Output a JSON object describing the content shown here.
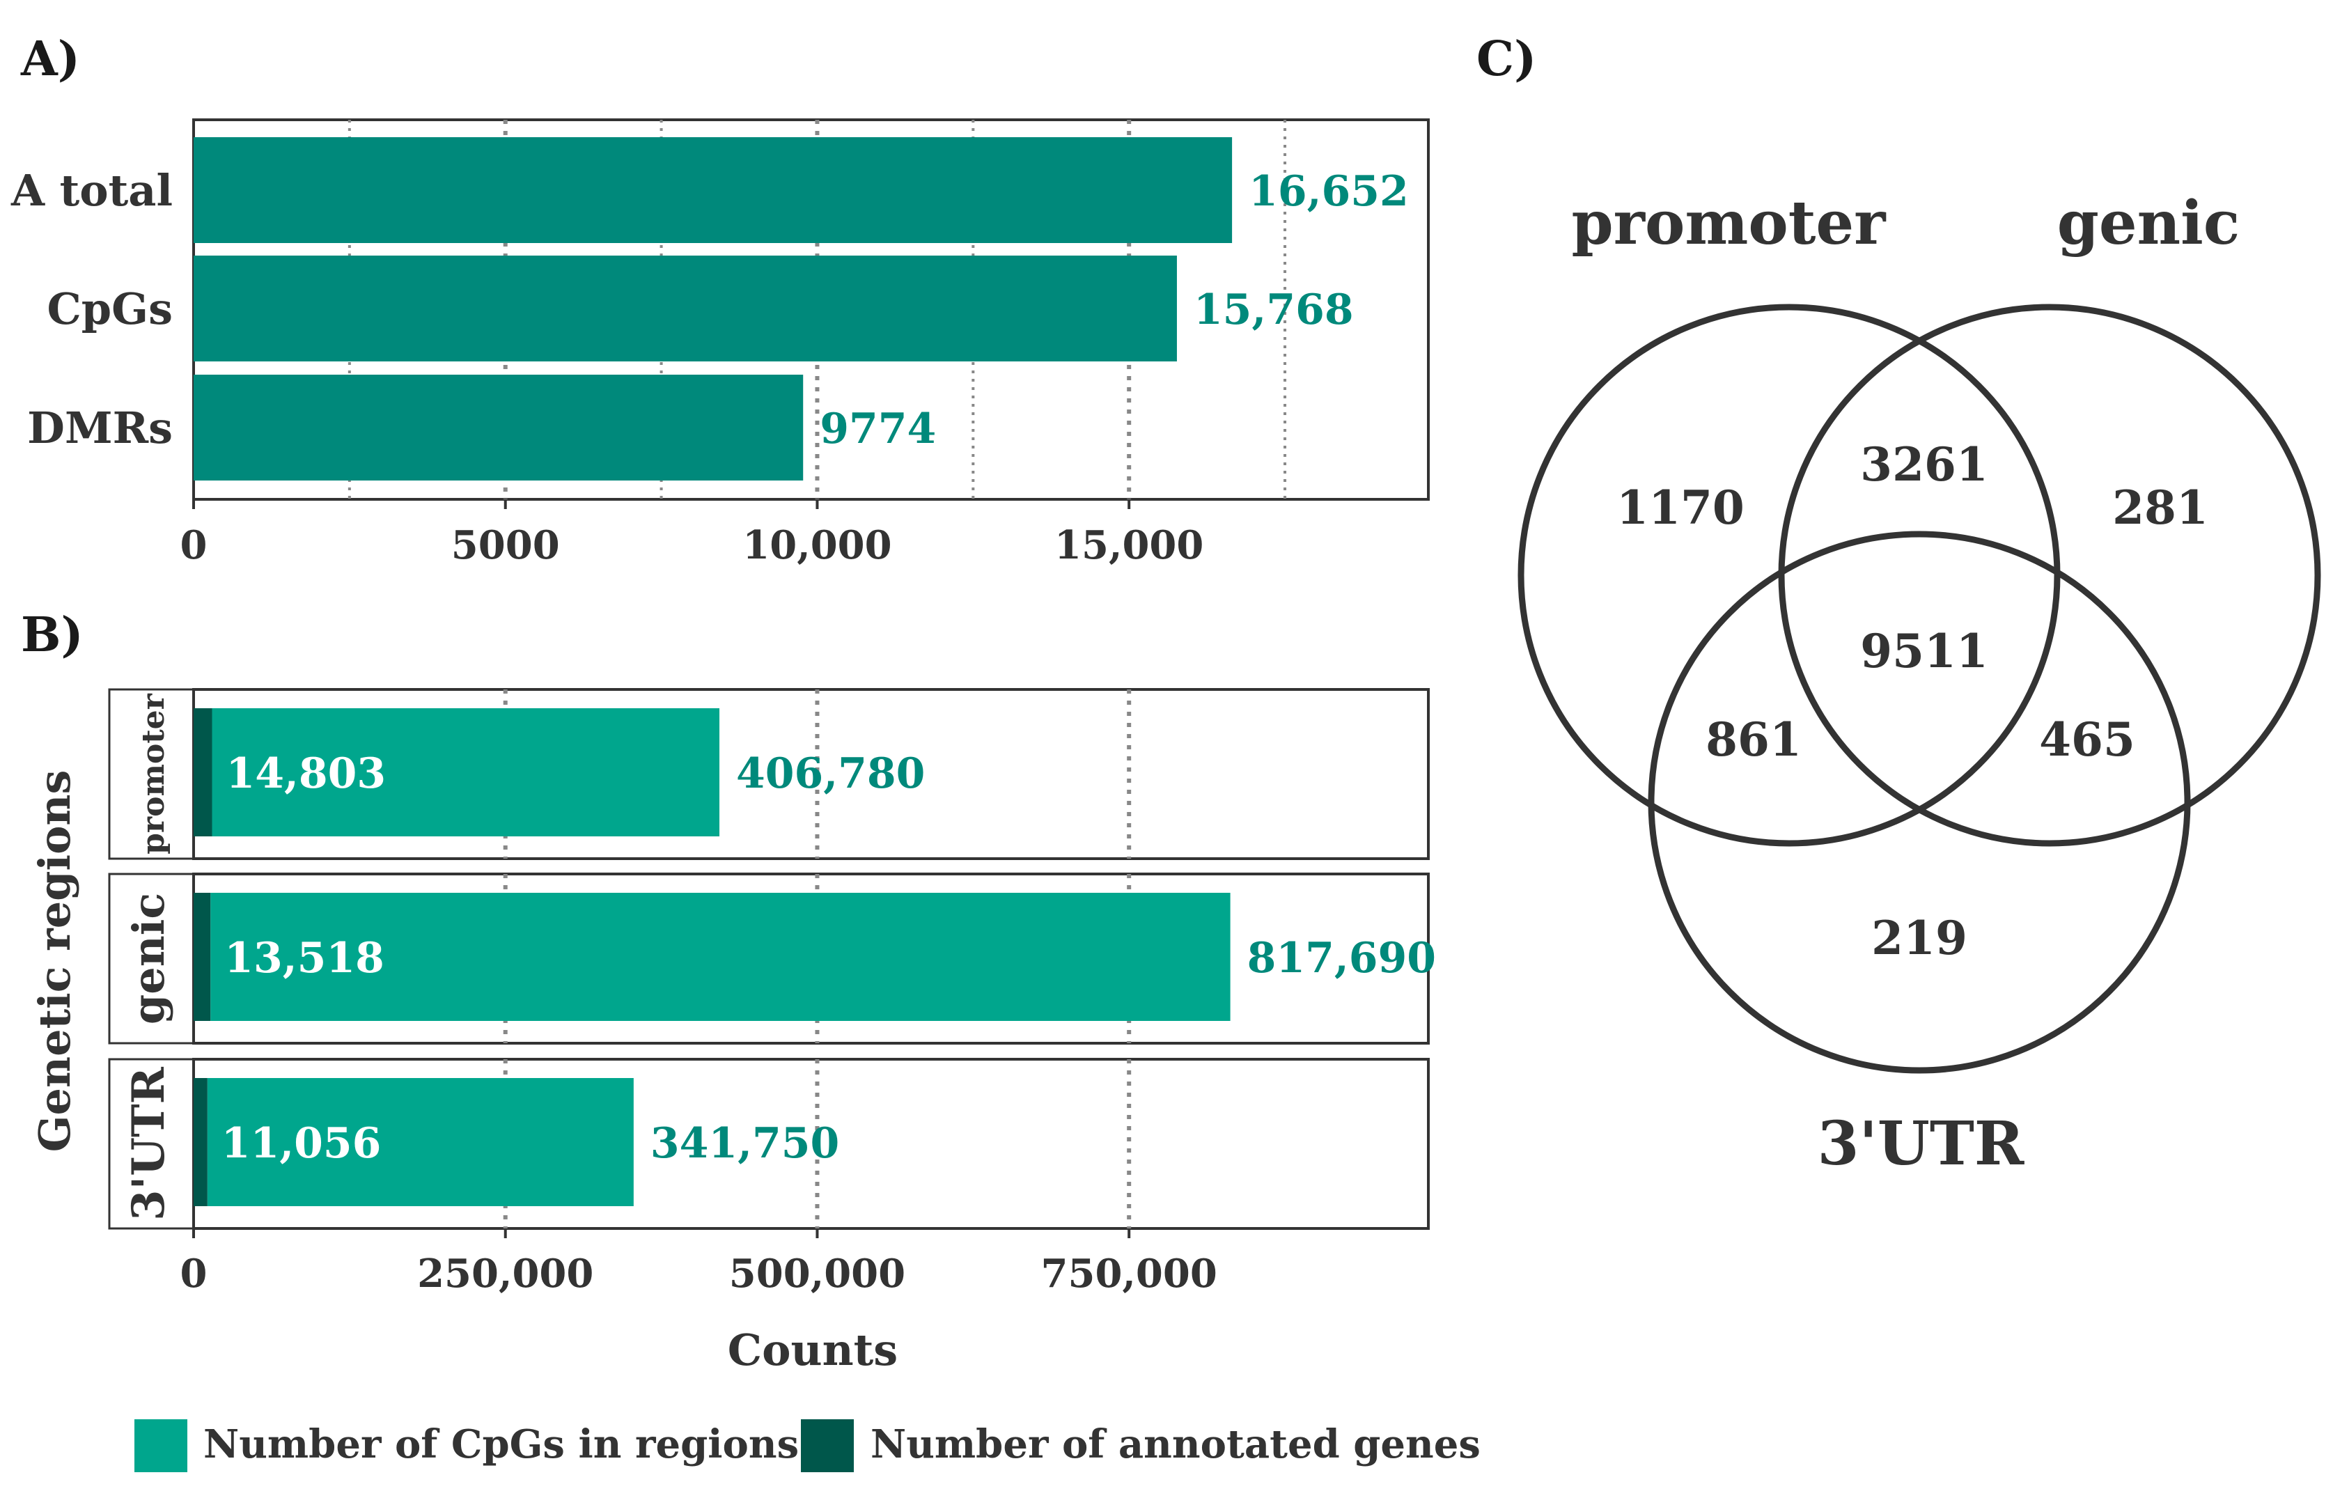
{
  "colors": {
    "bar_a": "#00897b",
    "cpg": "#00a68d",
    "genes": "#00574b",
    "value_text": "#00897b",
    "frame": "#333333",
    "grid": "#888888"
  },
  "panel_a": {
    "letter": "A)",
    "chart_data": {
      "type": "bar",
      "orientation": "horizontal",
      "categories": [
        "A total",
        "CpGs",
        "DMRs"
      ],
      "values": [
        16652,
        15768,
        9774
      ],
      "value_labels": [
        "16,652",
        "15,768",
        "9774"
      ],
      "xlim": [
        0,
        19800
      ],
      "xticks": [
        0,
        5000,
        10000,
        15000
      ],
      "xtick_labels": [
        "0",
        "5000",
        "10,000",
        "15,000"
      ],
      "minor_grid": [
        2500,
        7500,
        12500,
        17500
      ],
      "grid": true
    }
  },
  "panel_b": {
    "letter": "B)",
    "chart_data": {
      "type": "bar",
      "orientation": "horizontal",
      "stacked": true,
      "facets": [
        "promoter",
        "genic",
        "3'UTR"
      ],
      "series": [
        {
          "name": "Number of annotated genes",
          "values": [
            14803,
            13518,
            11056
          ],
          "labels": [
            "14,803",
            "13,518",
            "11,056"
          ]
        },
        {
          "name": "Number of CpGs in regions",
          "values": [
            406780,
            817690,
            341750
          ],
          "labels": [
            "406,780",
            "817,690",
            "341,750"
          ]
        }
      ],
      "xlim": [
        0,
        990000
      ],
      "xticks": [
        0,
        250000,
        500000,
        750000
      ],
      "xtick_labels": [
        "0",
        "250,000",
        "500,000",
        "750,000"
      ],
      "xlabel": "Counts",
      "ylabel": "Genetic regions",
      "legend": [
        "Number of CpGs in regions",
        "Number of annotated genes"
      ],
      "legend_position": "bottom",
      "grid": true
    }
  },
  "panel_c": {
    "letter": "C)",
    "chart_data": {
      "type": "venn",
      "sets": [
        "promoter",
        "genic",
        "3'UTR"
      ],
      "regions": [
        {
          "sets": [
            "promoter"
          ],
          "value": 1170
        },
        {
          "sets": [
            "genic"
          ],
          "value": 281
        },
        {
          "sets": [
            "3'UTR"
          ],
          "value": 219
        },
        {
          "sets": [
            "promoter",
            "genic"
          ],
          "value": 3261
        },
        {
          "sets": [
            "promoter",
            "3'UTR"
          ],
          "value": 861
        },
        {
          "sets": [
            "genic",
            "3'UTR"
          ],
          "value": 465
        },
        {
          "sets": [
            "promoter",
            "genic",
            "3'UTR"
          ],
          "value": 9511
        }
      ]
    }
  }
}
